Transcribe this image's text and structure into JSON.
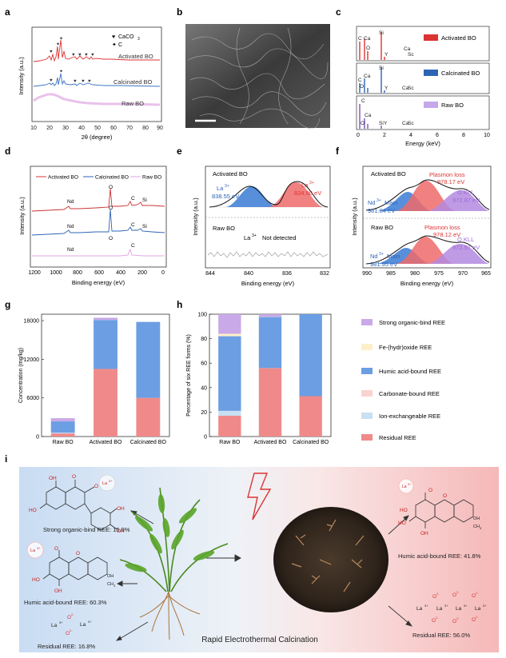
{
  "panels": {
    "a": {
      "letter": "a",
      "ylabel": "Intensity (a.u.)",
      "xlabel": "2θ (degree)",
      "xticks": [
        "10",
        "20",
        "30",
        "40",
        "50",
        "60",
        "70",
        "80",
        "90"
      ],
      "legend_caco3": "CaCO",
      "legend_caco3_sub": "3",
      "legend_c": "C",
      "legend_heart": "♥",
      "legend_star": "✦",
      "labels": [
        "Activated BO",
        "Calcinated BO",
        "Raw BO"
      ]
    },
    "b": {
      "letter": "b"
    },
    "c": {
      "letter": "c",
      "xlabel": "Energy (keV)",
      "xticks": [
        "0",
        "2",
        "4",
        "6",
        "8",
        "10"
      ],
      "legends": [
        "Activated BO",
        "Calcinated BO",
        "Raw BO"
      ],
      "peaks_activated": [
        "C",
        "Ca",
        "O",
        "Si",
        "Y",
        "Ca",
        "Sc"
      ],
      "peaks_calcinated": [
        "C",
        "Ca",
        "O",
        "Si",
        "Y",
        "Ca",
        "Sc"
      ],
      "peaks_raw": [
        "C",
        "Ca",
        "O",
        "Si",
        "Y",
        "Ca",
        "Sc"
      ]
    },
    "d": {
      "letter": "d",
      "ylabel": "Intensity (a.u.)",
      "xlabel": "Binding energy (eV)",
      "xticks": [
        "1200",
        "1000",
        "800",
        "600",
        "400",
        "200",
        "0"
      ],
      "legend": [
        "Activated BO",
        "Calcinated BO",
        "Raw BO"
      ],
      "peaks": [
        "Nd",
        "O",
        "C",
        "Si",
        "Nd",
        "O",
        "C",
        "Si",
        "Nd",
        "O",
        "C"
      ]
    },
    "e": {
      "letter": "e",
      "ylabel": "Intensity (a.u.)",
      "xlabel": "Binding energy (eV)",
      "xticks": [
        "844",
        "840",
        "836",
        "832"
      ],
      "title1": "Activated BO",
      "peak1_name": "La",
      "peak1_value": "838.55 eV",
      "peak2_name": "La",
      "peak2_value": "834.90 eV",
      "title2": "Raw BO",
      "not_detected_ion": "La",
      "not_detected": "Not detected",
      "sup": "3+"
    },
    "f": {
      "letter": "f",
      "ylabel": "Intensity (a.u.)",
      "xlabel": "Binding energy (eV)",
      "xticks": [
        "990",
        "985",
        "980",
        "975",
        "970",
        "965"
      ],
      "title1": "Activated BO",
      "plasmon1": "Plasmon loss",
      "plasmon1_value": "978.17 eV",
      "okll1": "O KLL",
      "okll1_value": "972.87 eV",
      "nd1": "Nd",
      "nd1_main": "Main",
      "nd1_value": "981.84 eV",
      "title2": "Raw BO",
      "plasmon2": "Plasmon loss",
      "plasmon2_value": "978.12 eV",
      "okll2": "O KLL",
      "okll2_value": "972.97 eV",
      "nd2": "Nd",
      "nd2_main": "Main",
      "nd2_value": "981.95 eV",
      "sup": "3+"
    },
    "g": {
      "letter": "g"
    },
    "h": {
      "letter": "h"
    },
    "i": {
      "letter": "i",
      "center_label": "Rapid Electrothermal Calcination",
      "left_items": [
        "Strong organic-bind REE: 15.9%",
        "Humic acid-bound REE: 60.3%",
        "Residual REE: 16.8%"
      ],
      "right_items": [
        "Humic acid-bound REE: 41.8%",
        "Residual REE: 56.0%"
      ],
      "la_label": "La",
      "la_sup": "3+",
      "o_label": "O",
      "o_sup": "2-",
      "ho": "HO",
      "oh": "OH",
      "o": "O",
      "ch3": "CH",
      "ch3_sub": "3"
    },
    "legend_h": {
      "items": [
        "Strong organic-bind REE",
        "Fe-(hydr)oxide REE",
        "Humic acid-bound REE",
        "Carbonate-bound REE",
        "Ion-exchangeable REE",
        "Residual REE"
      ],
      "colors": [
        "#c9a9e8",
        "#fdf0c8",
        "#6c9ee3",
        "#f9d3d0",
        "#c9dff2",
        "#f08a8a"
      ]
    }
  },
  "chart_data": [
    {
      "id": "g",
      "type": "bar",
      "stacked": true,
      "categories": [
        "Raw BO",
        "Activated BO",
        "Calcinated BO"
      ],
      "ylabel": "Concentration (mg/kg)",
      "yticks": [
        "0",
        "6000",
        "12000",
        "18000"
      ],
      "ylim": [
        0,
        19000
      ],
      "series": [
        {
          "name": "Residual REE",
          "color": "#f08a8a",
          "values": [
            480,
            10500,
            6000
          ]
        },
        {
          "name": "Ion-exchangeable REE",
          "color": "#c9dff2",
          "values": [
            120,
            0,
            0
          ]
        },
        {
          "name": "Carbonate-bound REE",
          "color": "#f9d3d0",
          "values": [
            0,
            0,
            0
          ]
        },
        {
          "name": "Humic acid-bound REE",
          "color": "#6c9ee3",
          "values": [
            1750,
            7600,
            11800
          ]
        },
        {
          "name": "Fe-(hydr)oxide REE",
          "color": "#fdf0c8",
          "values": [
            0,
            0,
            0
          ]
        },
        {
          "name": "Strong organic-bind REE",
          "color": "#c9a9e8",
          "values": [
            500,
            350,
            0
          ]
        }
      ]
    },
    {
      "id": "h",
      "type": "bar",
      "stacked": true,
      "categories": [
        "Raw BO",
        "Activated BO",
        "Calcinated BO"
      ],
      "ylabel": "Percentage of six REE forms (%)",
      "yticks": [
        "0",
        "20",
        "40",
        "60",
        "80",
        "100"
      ],
      "ylim": [
        0,
        100
      ],
      "series": [
        {
          "name": "Residual REE",
          "color": "#f08a8a",
          "values": [
            17,
            56,
            33
          ]
        },
        {
          "name": "Ion-exchangeable REE",
          "color": "#c9dff2",
          "values": [
            4,
            0,
            0
          ]
        },
        {
          "name": "Carbonate-bound REE",
          "color": "#f9d3d0",
          "values": [
            0,
            0,
            0
          ]
        },
        {
          "name": "Humic acid-bound REE",
          "color": "#6c9ee3",
          "values": [
            61,
            41.8,
            67
          ]
        },
        {
          "name": "Fe-(hydr)oxide REE",
          "color": "#fdf0c8",
          "values": [
            2,
            0.2,
            0
          ]
        },
        {
          "name": "Strong organic-bind REE",
          "color": "#c9a9e8",
          "values": [
            16,
            2,
            0
          ]
        }
      ]
    }
  ]
}
